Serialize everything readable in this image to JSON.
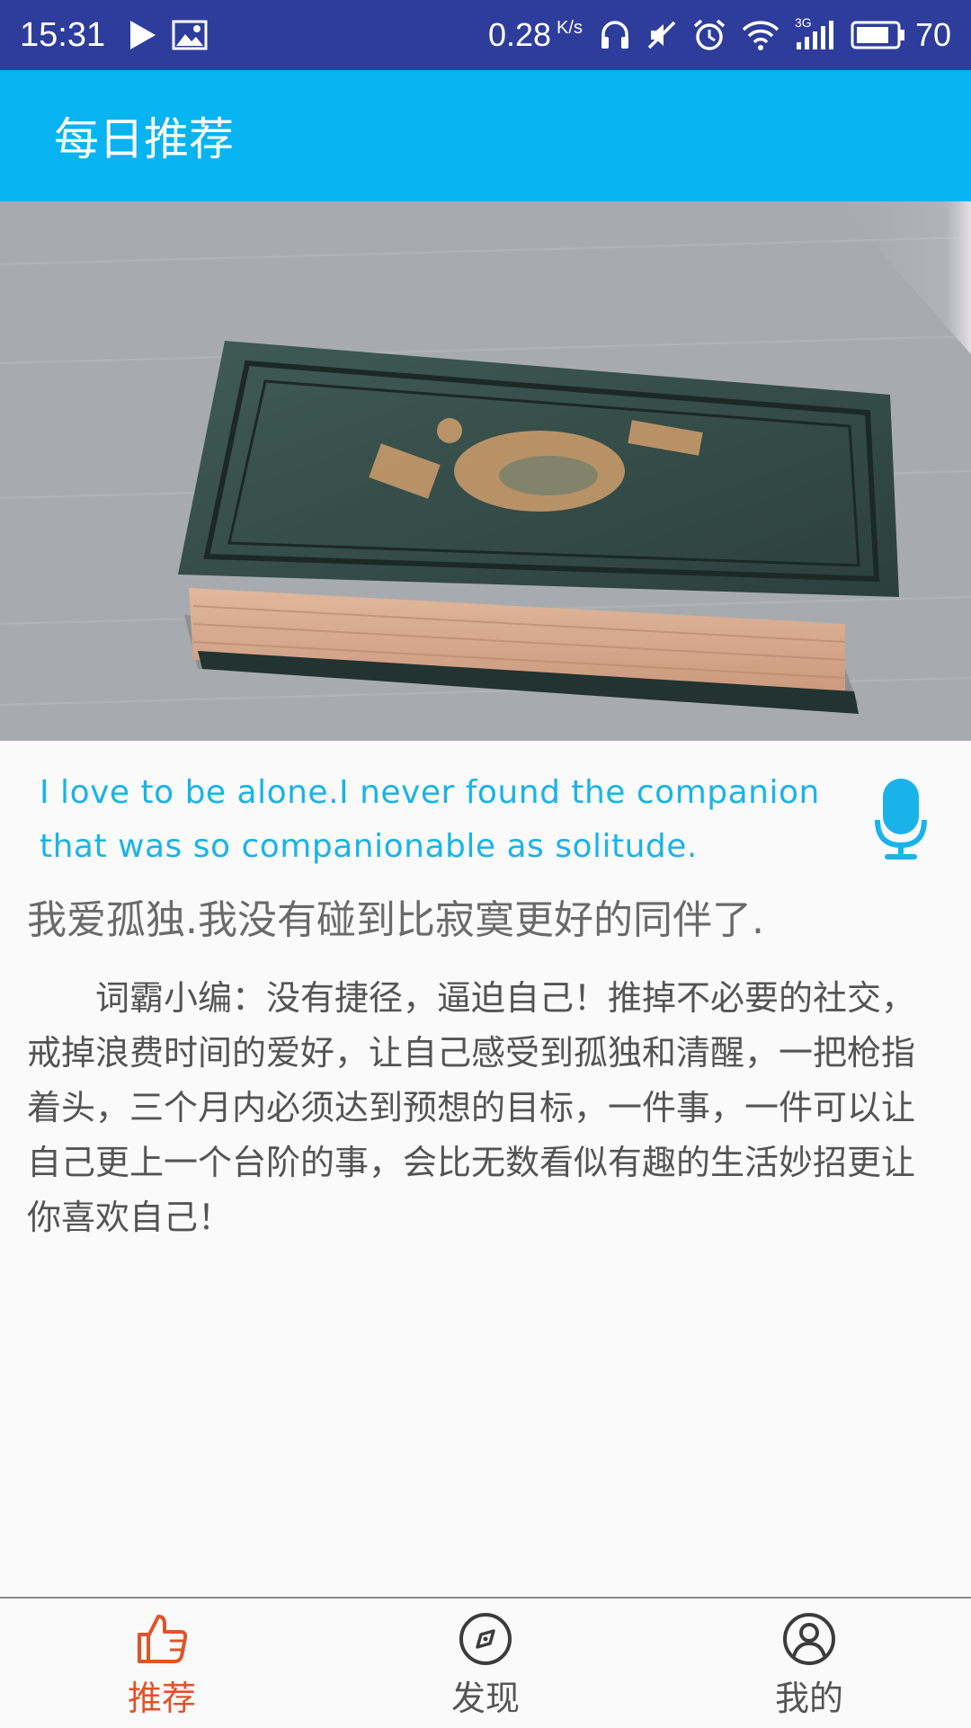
{
  "status_bar": {
    "time": "15:31",
    "net_speed": "0.28",
    "net_unit": "K/s",
    "signal_type": "3G",
    "battery": "70",
    "icons": [
      "play-icon",
      "image-icon",
      "headphones-icon",
      "vibrate-off-icon",
      "alarm-icon",
      "wifi-icon",
      "signal-icon",
      "battery-icon"
    ]
  },
  "app_bar": {
    "title": "每日推荐"
  },
  "hero": {
    "icon": "book-photo"
  },
  "content": {
    "quote_en": "I love to be alone.I never found the companion that was so companionable as solitude.",
    "quote_cn": "我爱孤独.我没有碰到比寂寞更好的同伴了.",
    "editor_note": "词霸小编：没有捷径，逼迫自己！推掉不必要的社交，戒掉浪费时间的爱好，让自己感受到孤独和清醒，一把枪指着头，三个月内必须达到预想的目标，一件事，一件可以让自己更上一个台阶的事，会比无数看似有趣的生活妙招更让你喜欢自己！"
  },
  "bottom_nav": {
    "items": [
      {
        "label": "推荐",
        "icon": "thumbs-up-icon",
        "active": true
      },
      {
        "label": "发现",
        "icon": "compass-icon",
        "active": false
      },
      {
        "label": "我的",
        "icon": "user-icon",
        "active": false
      }
    ]
  },
  "colors": {
    "status_bar": "#2e3d9b",
    "app_bar": "#07b3f0",
    "quote_en": "#19b3ea",
    "nav_active": "#e0532b"
  }
}
